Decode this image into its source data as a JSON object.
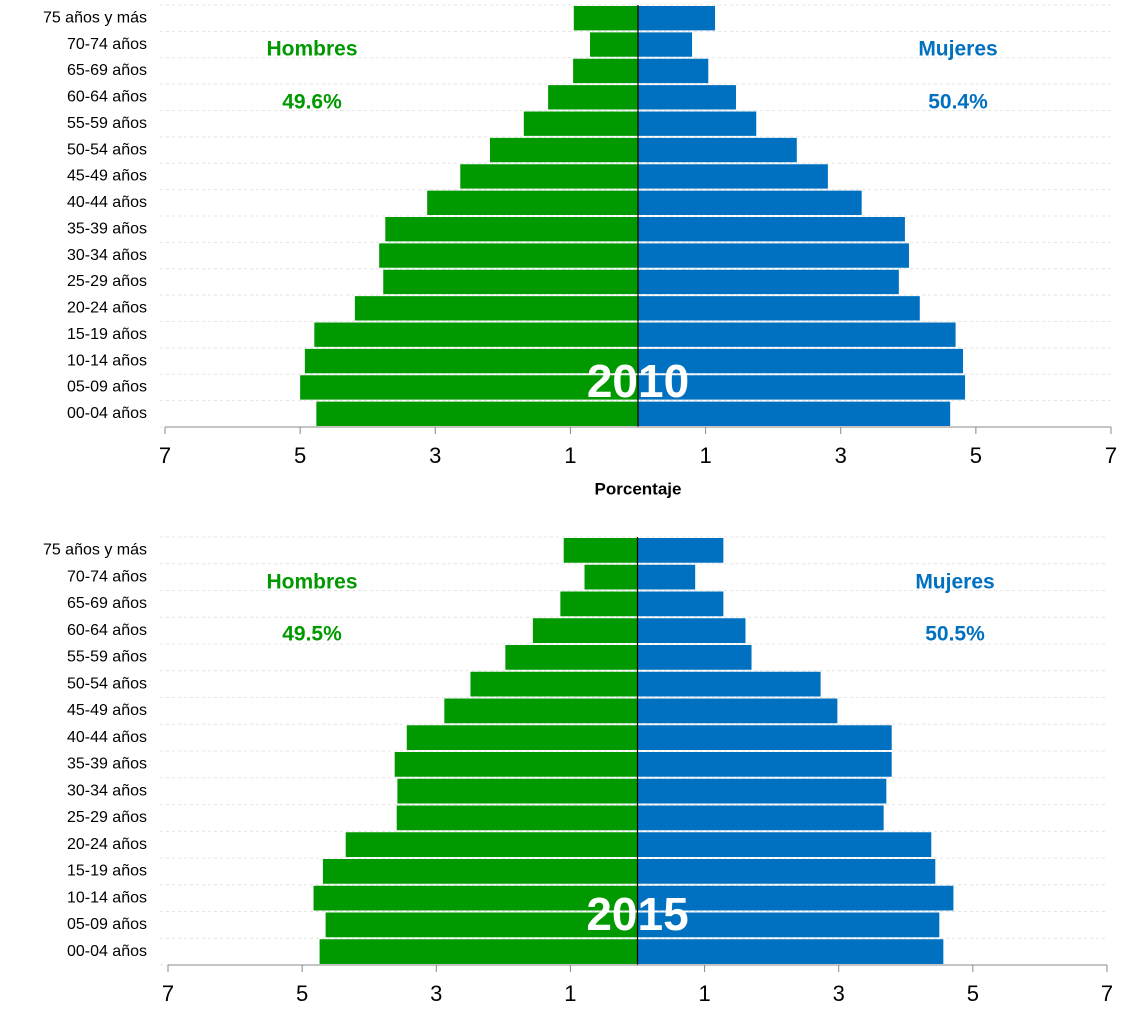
{
  "chart_data": [
    {
      "type": "pyramid",
      "title": "2010",
      "xlabel": "Porcentaje",
      "categories": [
        "00-04 años",
        "05-09 años",
        "10-14 años",
        "15-19 años",
        "20-24 años",
        "25-29 años",
        "30-34 años",
        "35-39 años",
        "40-44 años",
        "45-49 años",
        "50-54 años",
        "55-59 años",
        "60-64 años",
        "65-69 años",
        "70-74 años",
        "75 años y más"
      ],
      "series": [
        {
          "name": "Hombres",
          "share": "49.6%",
          "color": "#009900",
          "values": [
            -4.76,
            -5.0,
            -4.93,
            -4.79,
            -4.19,
            -3.77,
            -3.83,
            -3.74,
            -3.12,
            -2.63,
            -2.19,
            -1.69,
            -1.33,
            -0.96,
            -0.71,
            -0.95
          ]
        },
        {
          "name": "Mujeres",
          "share": "50.4%",
          "color": "#0070c0",
          "values": [
            4.62,
            4.84,
            4.81,
            4.7,
            4.17,
            3.86,
            4.01,
            3.95,
            3.31,
            2.81,
            2.35,
            1.75,
            1.45,
            1.04,
            0.8,
            1.14
          ]
        }
      ],
      "xlim": [
        -7,
        7
      ],
      "xticks": [
        {
          "value": -7,
          "label": "7"
        },
        {
          "value": -5,
          "label": "5"
        },
        {
          "value": -3,
          "label": "3"
        },
        {
          "value": -1,
          "label": "1"
        },
        1,
        3,
        5,
        7
      ],
      "grid": true
    },
    {
      "type": "pyramid",
      "title": "2015",
      "categories": [
        "00-04 años",
        "05-09 años",
        "10-14 años",
        "15-19 años",
        "20-24 años",
        "25-29 años",
        "30-34 años",
        "35-39 años",
        "40-44 años",
        "45-49 años",
        "50-54 años",
        "55-59 años",
        "60-64 años",
        "65-69 años",
        "70-74 años",
        "75 años y más"
      ],
      "series": [
        {
          "name": "Hombres",
          "share": "49.5%",
          "color": "#009900",
          "values": [
            -4.74,
            -4.65,
            -4.83,
            -4.69,
            -4.35,
            -3.59,
            -3.58,
            -3.62,
            -3.44,
            -2.88,
            -2.49,
            -1.97,
            -1.56,
            -1.15,
            -0.79,
            -1.1
          ]
        },
        {
          "name": "Mujeres",
          "share": "50.5%",
          "color": "#0070c0",
          "values": [
            4.56,
            4.5,
            4.71,
            4.44,
            4.38,
            3.67,
            3.71,
            3.79,
            3.79,
            2.98,
            2.73,
            1.7,
            1.61,
            1.28,
            0.86,
            1.28
          ]
        }
      ],
      "xlim": [
        -7,
        7
      ],
      "xticks": [
        {
          "value": -7,
          "label": "7"
        },
        {
          "value": -5,
          "label": "5"
        },
        {
          "value": -3,
          "label": "3"
        },
        {
          "value": -1,
          "label": "1"
        },
        1,
        3,
        5,
        7
      ],
      "grid": true
    }
  ]
}
